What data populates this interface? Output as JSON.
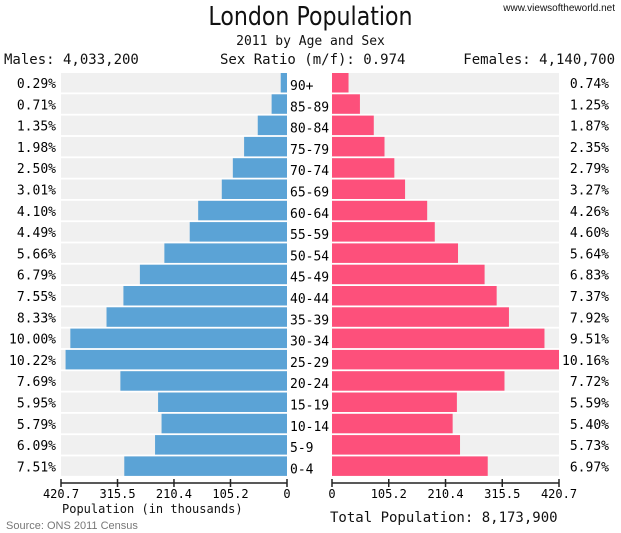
{
  "header": {
    "title": "London Population",
    "subtitle": "2011 by Age and Sex",
    "site": "www.viewsoftheworld.net",
    "males": "Males: 4,033,200",
    "ratio": "Sex Ratio (m/f): 0.974",
    "females": "Females: 4,140,700"
  },
  "footer": {
    "xlabel": "Population (in thousands)",
    "total": "Total Population: 8,173,900",
    "source": "Source: ONS 2011 Census"
  },
  "chart_data": {
    "type": "bar",
    "title": "London Population",
    "subtitle": "2011 by Age and Sex",
    "xlabel": "Population (in thousands)",
    "xlim": [
      0,
      420.7
    ],
    "ticks": [
      "0",
      "105.2",
      "210.4",
      "315.5",
      "420.7"
    ],
    "tick_values": [
      0,
      105.2,
      210.4,
      315.5,
      420.7
    ],
    "male_total_thousands": 4033.2,
    "female_total_thousands": 4140.7,
    "colors": {
      "male": "#5ba3d6",
      "female": "#fd507b",
      "row_bg": "#f0f0f0"
    },
    "categories": [
      "90+",
      "85-89",
      "80-84",
      "75-79",
      "70-74",
      "65-69",
      "60-64",
      "55-59",
      "50-54",
      "45-49",
      "40-44",
      "35-39",
      "30-34",
      "25-29",
      "20-24",
      "15-19",
      "10-14",
      "5-9",
      "0-4"
    ],
    "series": [
      {
        "name": "Males",
        "labels": [
          "0.29%",
          "0.71%",
          "1.35%",
          "1.98%",
          "2.50%",
          "3.01%",
          "4.10%",
          "4.49%",
          "5.66%",
          "6.79%",
          "7.55%",
          "8.33%",
          "10.00%",
          "10.22%",
          "7.69%",
          "5.95%",
          "5.79%",
          "6.09%",
          "7.51%"
        ],
        "values": [
          0.29,
          0.71,
          1.35,
          1.98,
          2.5,
          3.01,
          4.1,
          4.49,
          5.66,
          6.79,
          7.55,
          8.33,
          10.0,
          10.22,
          7.69,
          5.95,
          5.79,
          6.09,
          7.51
        ]
      },
      {
        "name": "Females",
        "labels": [
          "0.74%",
          "1.25%",
          "1.87%",
          "2.35%",
          "2.79%",
          "3.27%",
          "4.26%",
          "4.60%",
          "5.64%",
          "6.83%",
          "7.37%",
          "7.92%",
          "9.51%",
          "10.16%",
          "7.72%",
          "5.59%",
          "5.40%",
          "5.73%",
          "6.97%"
        ],
        "values": [
          0.74,
          1.25,
          1.87,
          2.35,
          2.79,
          3.27,
          4.26,
          4.6,
          5.64,
          6.83,
          7.37,
          7.92,
          9.51,
          10.16,
          7.72,
          5.59,
          5.4,
          5.73,
          6.97
        ]
      }
    ]
  }
}
